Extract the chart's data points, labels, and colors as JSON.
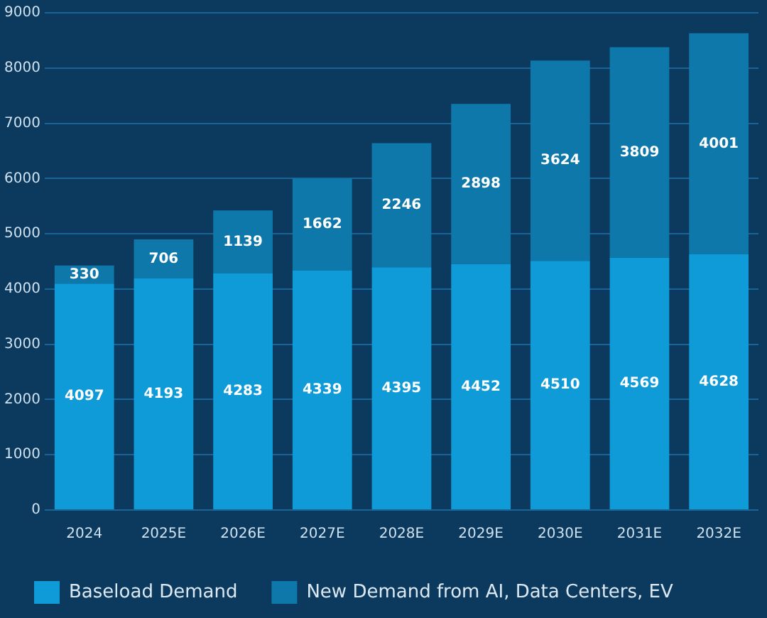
{
  "chart_data": {
    "type": "bar",
    "stacked": true,
    "categories": [
      "2024",
      "2025E",
      "2026E",
      "2027E",
      "2028E",
      "2029E",
      "2030E",
      "2031E",
      "2032E"
    ],
    "series": [
      {
        "name": "Baseload Demand",
        "color": "#0f9ad8",
        "values": [
          4097,
          4193,
          4283,
          4339,
          4395,
          4452,
          4510,
          4569,
          4628
        ]
      },
      {
        "name": "New Demand from AI, Data Centers, EV",
        "color": "#0e78ab",
        "values": [
          330,
          706,
          1139,
          1662,
          2246,
          2898,
          3624,
          3809,
          4001
        ]
      }
    ],
    "ylim": [
      0,
      9000
    ],
    "yticks": [
      0,
      1000,
      2000,
      3000,
      4000,
      5000,
      6000,
      7000,
      8000,
      9000
    ],
    "grid": "y",
    "legend": "bottom",
    "data_labels": true
  }
}
